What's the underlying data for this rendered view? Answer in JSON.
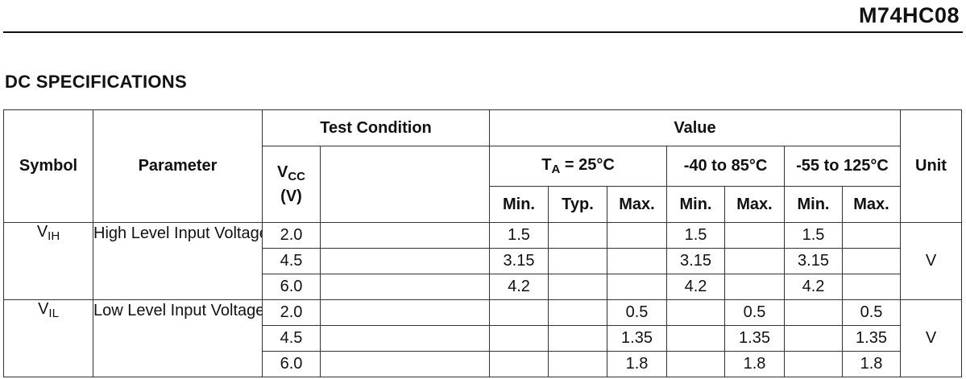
{
  "header": {
    "doc_code": "M74HC08"
  },
  "section": {
    "title": "DC SPECIFICATIONS"
  },
  "table": {
    "head": {
      "symbol": "Symbol",
      "parameter": "Parameter",
      "test_condition": "Test Condition",
      "value": "Value",
      "unit": "Unit",
      "vcc_main": "V",
      "vcc_sub": "CC",
      "vcc_unit": "(V)",
      "ta_main": "T",
      "ta_sub": "A",
      "ta_rest": " = 25°C",
      "range2": "-40 to 85°C",
      "range3": "-55 to 125°C",
      "min": "Min.",
      "typ": "Typ.",
      "max": "Max."
    },
    "groups": [
      {
        "symbol_main": "V",
        "symbol_sub": "IH",
        "parameter": "High Level Input Voltage",
        "unit": "V",
        "rows": [
          {
            "vcc": "2.0",
            "cond": "",
            "ta_min": "1.5",
            "ta_typ": "",
            "ta_max": "",
            "r2_min": "1.5",
            "r2_max": "",
            "r3_min": "1.5",
            "r3_max": ""
          },
          {
            "vcc": "4.5",
            "cond": "",
            "ta_min": "3.15",
            "ta_typ": "",
            "ta_max": "",
            "r2_min": "3.15",
            "r2_max": "",
            "r3_min": "3.15",
            "r3_max": ""
          },
          {
            "vcc": "6.0",
            "cond": "",
            "ta_min": "4.2",
            "ta_typ": "",
            "ta_max": "",
            "r2_min": "4.2",
            "r2_max": "",
            "r3_min": "4.2",
            "r3_max": ""
          }
        ]
      },
      {
        "symbol_main": "V",
        "symbol_sub": "IL",
        "parameter": "Low Level Input Voltage",
        "unit": "V",
        "rows": [
          {
            "vcc": "2.0",
            "cond": "",
            "ta_min": "",
            "ta_typ": "",
            "ta_max": "0.5",
            "r2_min": "",
            "r2_max": "0.5",
            "r3_min": "",
            "r3_max": "0.5"
          },
          {
            "vcc": "4.5",
            "cond": "",
            "ta_min": "",
            "ta_typ": "",
            "ta_max": "1.35",
            "r2_min": "",
            "r2_max": "1.35",
            "r3_min": "",
            "r3_max": "1.35"
          },
          {
            "vcc": "6.0",
            "cond": "",
            "ta_min": "",
            "ta_typ": "",
            "ta_max": "1.8",
            "r2_min": "",
            "r2_max": "1.8",
            "r3_min": "",
            "r3_max": "1.8"
          }
        ]
      }
    ]
  }
}
